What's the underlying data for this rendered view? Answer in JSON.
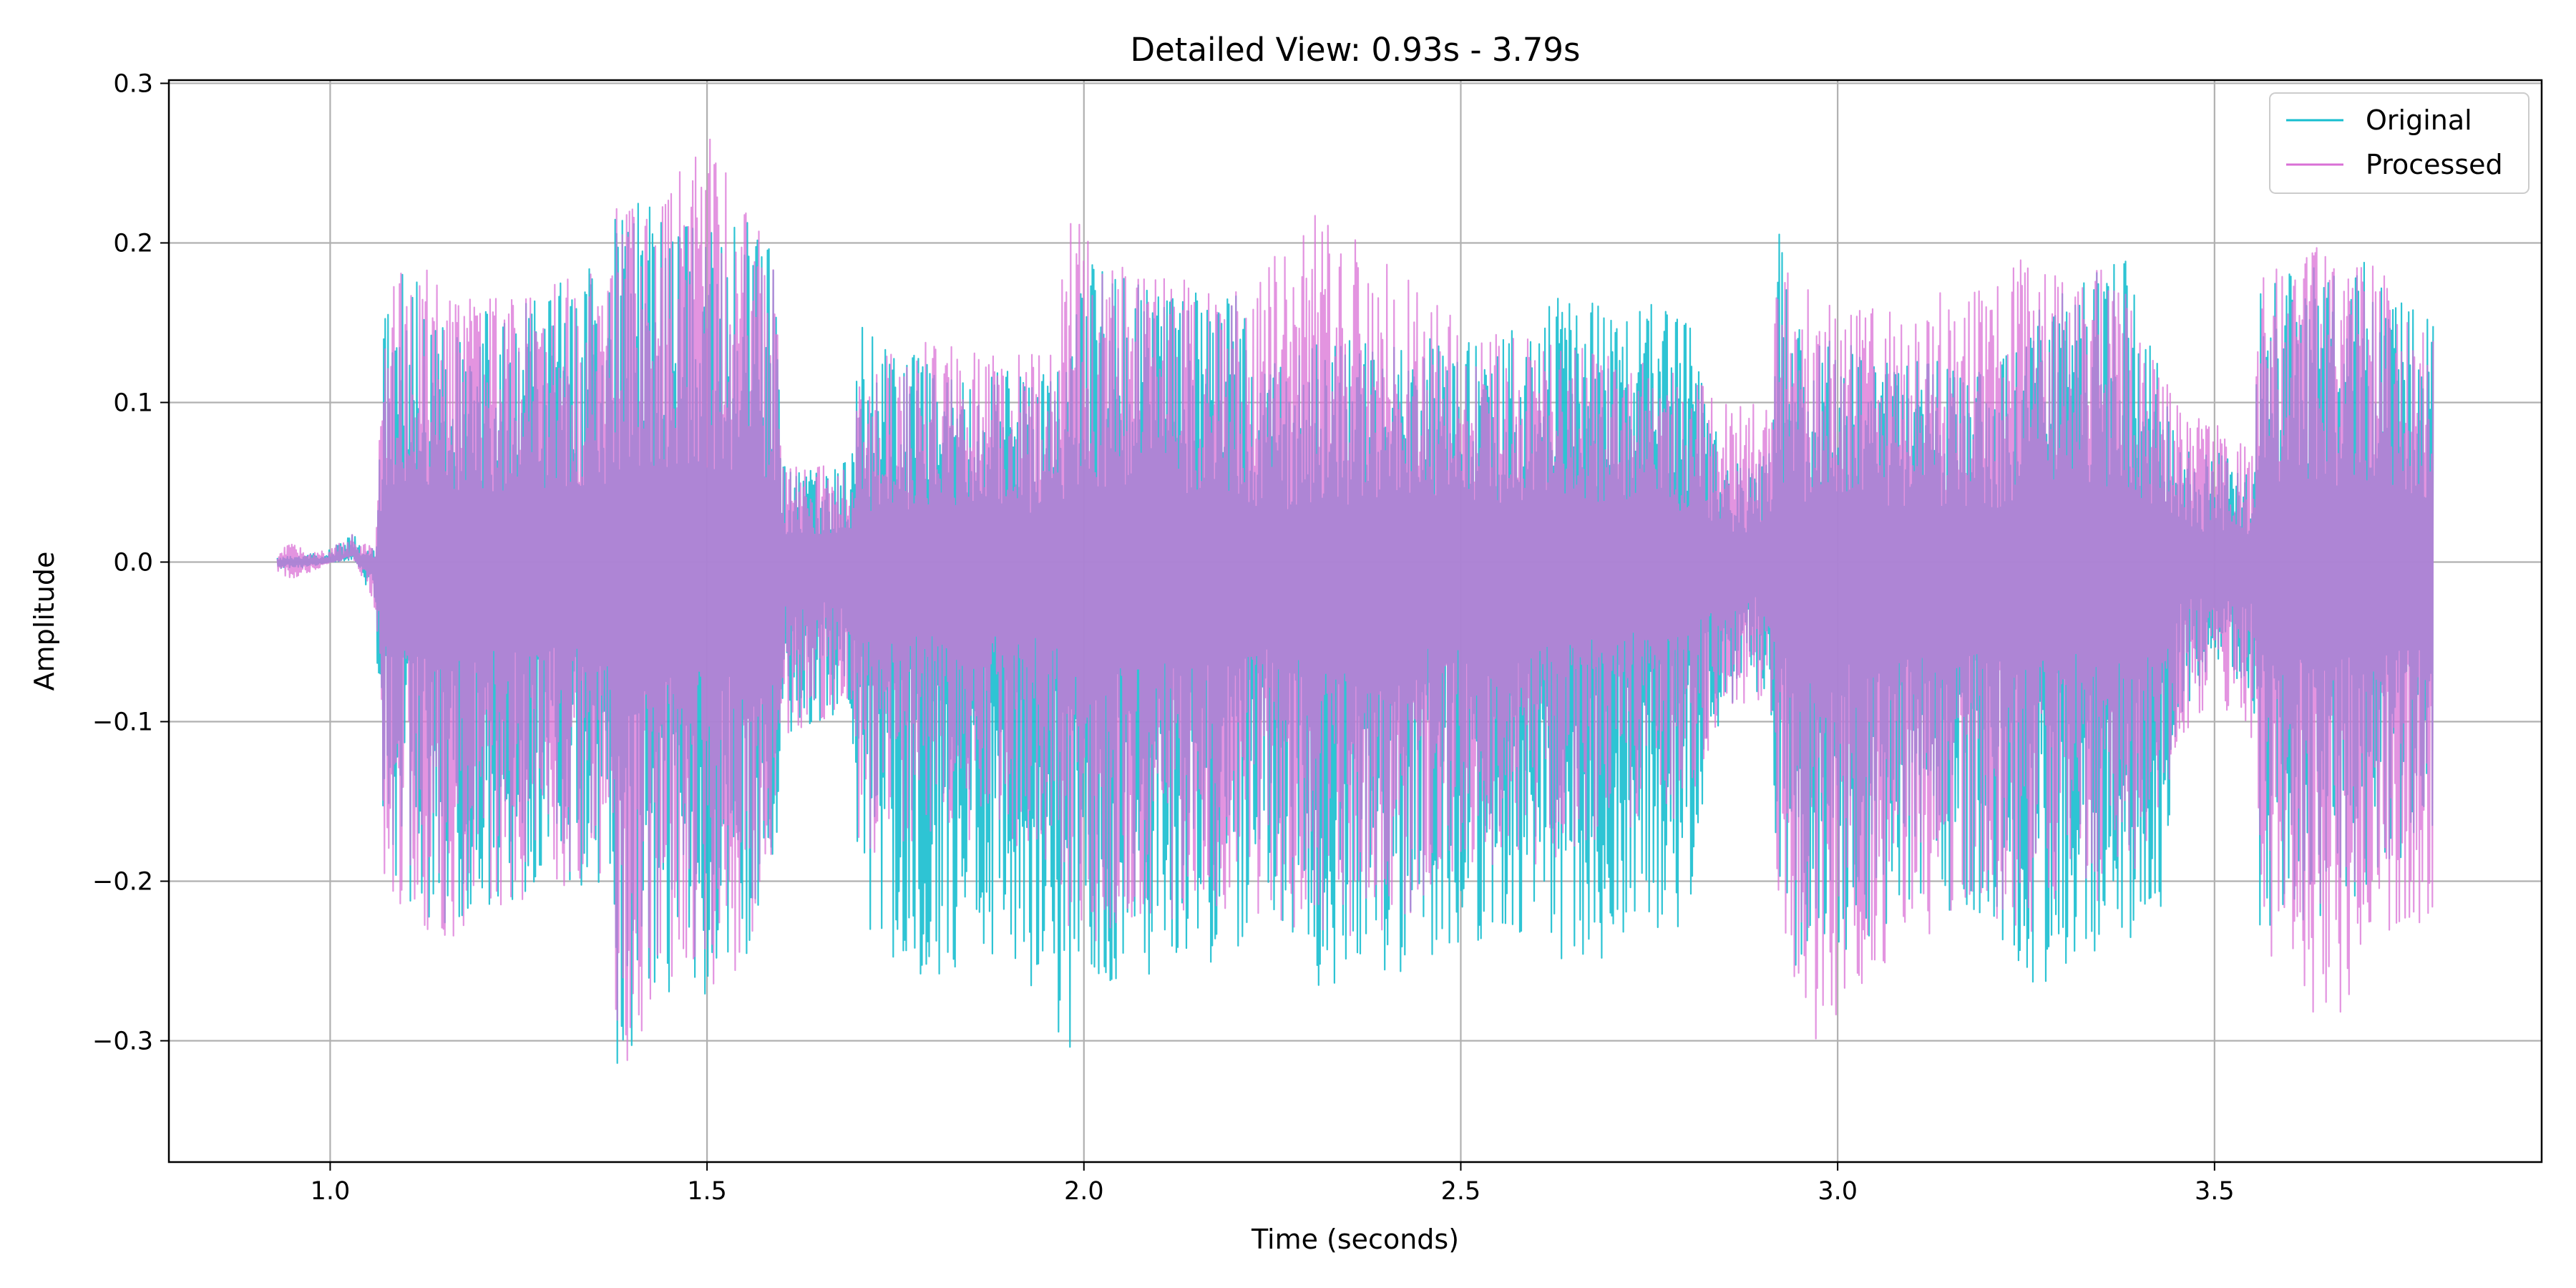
{
  "chart_data": {
    "type": "line",
    "title": "Detailed View: 0.93s - 3.79s",
    "xlabel": "Time (seconds)",
    "ylabel": "Amplitude",
    "xlim": [
      0.786,
      3.934
    ],
    "ylim": [
      -0.376,
      0.302
    ],
    "xticks": [
      1.0,
      1.5,
      2.0,
      2.5,
      3.0,
      3.5
    ],
    "xtick_labels": [
      "1.0",
      "1.5",
      "2.0",
      "2.5",
      "3.0",
      "3.5"
    ],
    "yticks": [
      -0.3,
      -0.2,
      -0.1,
      0.0,
      0.1,
      0.2,
      0.3
    ],
    "ytick_labels": [
      "−0.3",
      "−0.2",
      "−0.1",
      "0.0",
      "0.1",
      "0.2",
      "0.3"
    ],
    "grid": true,
    "legend_position": "top-right",
    "x_start": 0.93,
    "x_end": 3.79,
    "series": [
      {
        "name": "Original",
        "color": "#17becf",
        "envelope": [
          [
            0.93,
            -0.004,
            0.003
          ],
          [
            0.96,
            -0.004,
            0.004
          ],
          [
            1.0,
            0.0,
            0.008
          ],
          [
            1.03,
            0.005,
            0.018
          ],
          [
            1.06,
            -0.03,
            0.008
          ],
          [
            1.07,
            -0.2,
            0.15
          ],
          [
            1.1,
            -0.22,
            0.2
          ],
          [
            1.15,
            -0.24,
            0.17
          ],
          [
            1.2,
            -0.22,
            0.165
          ],
          [
            1.3,
            -0.21,
            0.175
          ],
          [
            1.37,
            -0.2,
            0.19
          ],
          [
            1.38,
            -0.34,
            0.23
          ],
          [
            1.45,
            -0.28,
            0.22
          ],
          [
            1.5,
            -0.27,
            0.23
          ],
          [
            1.55,
            -0.25,
            0.22
          ],
          [
            1.59,
            -0.19,
            0.2
          ],
          [
            1.6,
            -0.11,
            0.06
          ],
          [
            1.65,
            -0.1,
            0.06
          ],
          [
            1.69,
            -0.09,
            0.065
          ],
          [
            1.7,
            -0.22,
            0.15
          ],
          [
            1.75,
            -0.26,
            0.13
          ],
          [
            1.8,
            -0.26,
            0.13
          ],
          [
            1.9,
            -0.25,
            0.12
          ],
          [
            1.98,
            -0.31,
            0.12
          ],
          [
            2.0,
            -0.27,
            0.19
          ],
          [
            2.1,
            -0.26,
            0.17
          ],
          [
            2.2,
            -0.25,
            0.17
          ],
          [
            2.24,
            -0.21,
            0.12
          ],
          [
            2.3,
            -0.27,
            0.14
          ],
          [
            2.4,
            -0.26,
            0.14
          ],
          [
            2.5,
            -0.25,
            0.14
          ],
          [
            2.6,
            -0.23,
            0.15
          ],
          [
            2.63,
            -0.25,
            0.17
          ],
          [
            2.7,
            -0.25,
            0.165
          ],
          [
            2.8,
            -0.23,
            0.16
          ],
          [
            2.85,
            -0.09,
            0.06
          ],
          [
            2.91,
            -0.08,
            0.07
          ],
          [
            2.92,
            -0.22,
            0.22
          ],
          [
            2.95,
            -0.26,
            0.15
          ],
          [
            3.0,
            -0.25,
            0.14
          ],
          [
            3.1,
            -0.22,
            0.13
          ],
          [
            3.2,
            -0.22,
            0.12
          ],
          [
            3.24,
            -0.27,
            0.15
          ],
          [
            3.3,
            -0.26,
            0.17
          ],
          [
            3.38,
            -0.24,
            0.2
          ],
          [
            3.43,
            -0.22,
            0.12
          ],
          [
            3.45,
            -0.1,
            0.07
          ],
          [
            3.5,
            -0.07,
            0.07
          ],
          [
            3.55,
            -0.08,
            0.06
          ],
          [
            3.56,
            -0.23,
            0.18
          ],
          [
            3.6,
            -0.23,
            0.19
          ],
          [
            3.7,
            -0.22,
            0.19
          ],
          [
            3.79,
            -0.17,
            0.15
          ]
        ]
      },
      {
        "name": "Processed",
        "color": "#da70d6",
        "envelope": [
          [
            0.93,
            -0.008,
            0.005
          ],
          [
            0.95,
            -0.01,
            0.015
          ],
          [
            0.97,
            -0.008,
            0.005
          ],
          [
            1.0,
            0.0,
            0.008
          ],
          [
            1.03,
            0.005,
            0.018
          ],
          [
            1.06,
            -0.03,
            0.008
          ],
          [
            1.07,
            -0.2,
            0.15
          ],
          [
            1.1,
            -0.22,
            0.2
          ],
          [
            1.15,
            -0.24,
            0.17
          ],
          [
            1.2,
            -0.22,
            0.165
          ],
          [
            1.3,
            -0.21,
            0.175
          ],
          [
            1.37,
            -0.2,
            0.19
          ],
          [
            1.38,
            -0.34,
            0.23
          ],
          [
            1.45,
            -0.28,
            0.24
          ],
          [
            1.5,
            -0.27,
            0.27
          ],
          [
            1.55,
            -0.26,
            0.22
          ],
          [
            1.59,
            -0.19,
            0.2
          ],
          [
            1.6,
            -0.11,
            0.06
          ],
          [
            1.65,
            -0.1,
            0.06
          ],
          [
            1.69,
            -0.09,
            0.065
          ],
          [
            1.7,
            -0.18,
            0.11
          ],
          [
            1.75,
            -0.19,
            0.14
          ],
          [
            1.8,
            -0.17,
            0.14
          ],
          [
            1.9,
            -0.18,
            0.13
          ],
          [
            1.95,
            -0.19,
            0.13
          ],
          [
            1.99,
            -0.25,
            0.24
          ],
          [
            2.0,
            -0.24,
            0.21
          ],
          [
            2.1,
            -0.23,
            0.18
          ],
          [
            2.2,
            -0.22,
            0.17
          ],
          [
            2.3,
            -0.24,
            0.22
          ],
          [
            2.4,
            -0.23,
            0.19
          ],
          [
            2.5,
            -0.2,
            0.15
          ],
          [
            2.6,
            -0.19,
            0.14
          ],
          [
            2.7,
            -0.17,
            0.13
          ],
          [
            2.8,
            -0.16,
            0.12
          ],
          [
            2.85,
            -0.09,
            0.1
          ],
          [
            2.91,
            -0.09,
            0.1
          ],
          [
            2.92,
            -0.23,
            0.19
          ],
          [
            2.97,
            -0.31,
            0.17
          ],
          [
            3.0,
            -0.29,
            0.16
          ],
          [
            3.1,
            -0.24,
            0.17
          ],
          [
            3.2,
            -0.22,
            0.18
          ],
          [
            3.24,
            -0.24,
            0.19
          ],
          [
            3.3,
            -0.22,
            0.19
          ],
          [
            3.38,
            -0.21,
            0.18
          ],
          [
            3.43,
            -0.17,
            0.12
          ],
          [
            3.45,
            -0.12,
            0.1
          ],
          [
            3.5,
            -0.08,
            0.09
          ],
          [
            3.55,
            -0.12,
            0.07
          ],
          [
            3.56,
            -0.25,
            0.18
          ],
          [
            3.6,
            -0.26,
            0.19
          ],
          [
            3.63,
            -0.31,
            0.2
          ],
          [
            3.7,
            -0.26,
            0.19
          ],
          [
            3.79,
            -0.25,
            0.19
          ]
        ]
      }
    ]
  }
}
